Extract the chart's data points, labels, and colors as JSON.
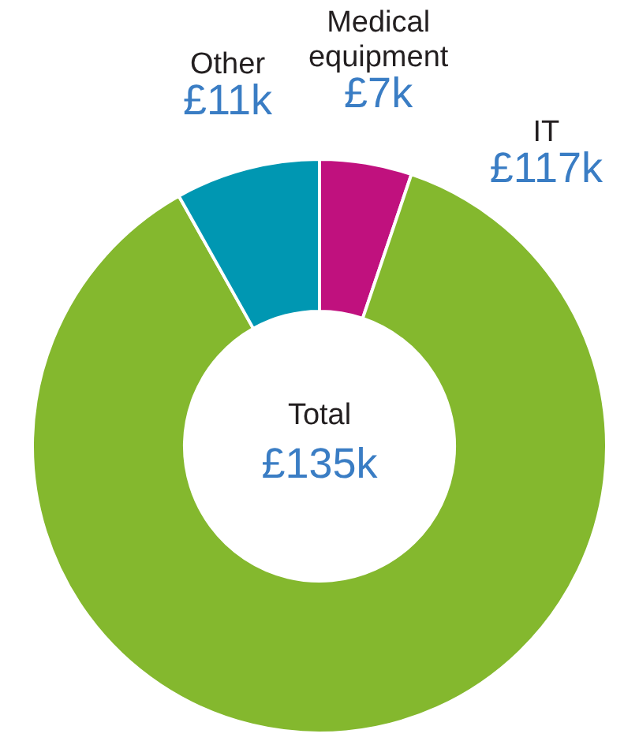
{
  "chart_data": {
    "type": "donut",
    "categories": [
      "Medical equipment",
      "IT",
      "Other"
    ],
    "values": [
      7,
      117,
      11
    ],
    "colors": [
      "#c0117e",
      "#84b82e",
      "#0097b2"
    ],
    "value_labels": [
      "£7k",
      "£117k",
      "£11k"
    ],
    "annotations": [
      "Total",
      "£135k"
    ]
  }
}
